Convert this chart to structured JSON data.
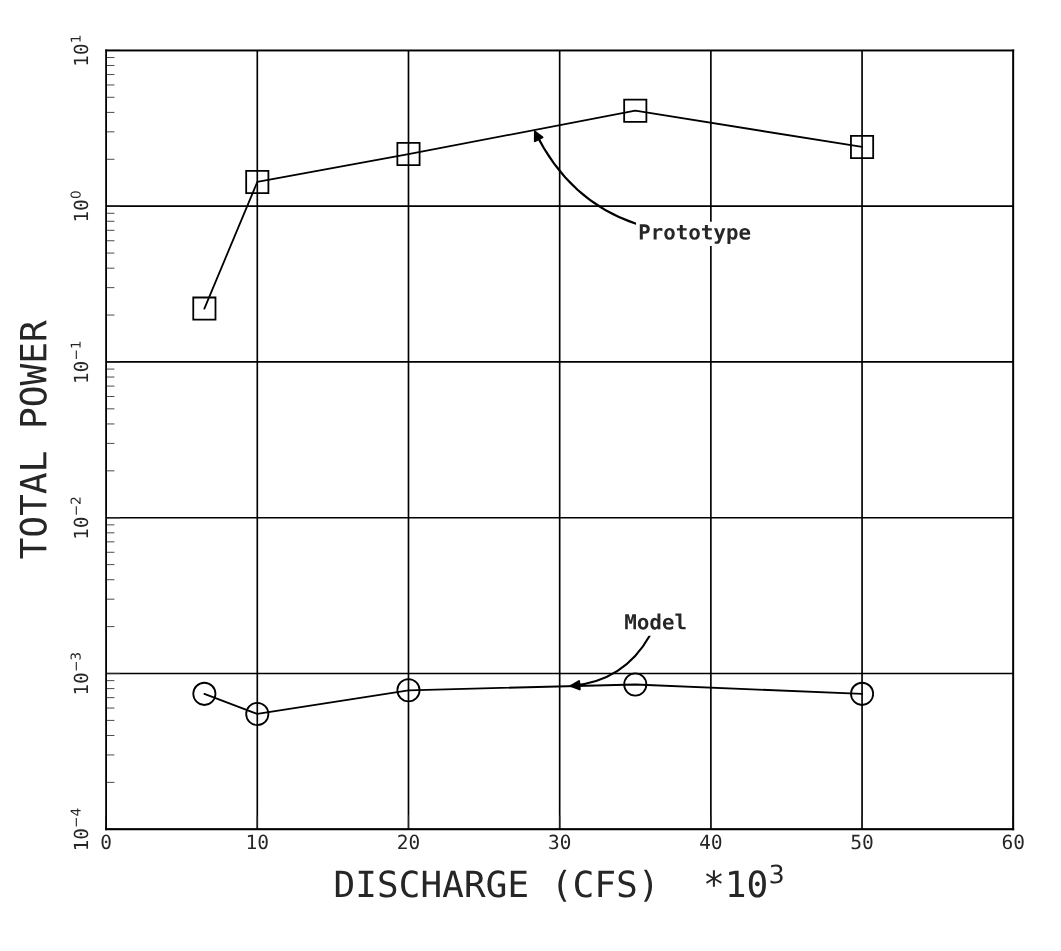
{
  "chart_data": {
    "type": "line",
    "xlabel": "DISCHARGE (CFS)  *10$^{3}$",
    "ylabel": "TOTAL POWER",
    "x": [
      6.5,
      10,
      20,
      35,
      50
    ],
    "series": [
      {
        "color": "#000000",
        "marker": "square",
        "values": [
          0.22,
          1.43,
          2.16,
          4.1,
          2.4
        ]
      },
      {
        "color": "#000000",
        "marker": "circle",
        "values": [
          0.00074,
          0.00055,
          0.00078,
          0.00085,
          0.00074
        ]
      }
    ],
    "annotations": [
      {
        "text": "Prototype",
        "x": 28.3,
        "y": 3.1
      },
      {
        "text": "Model",
        "x": 30.6,
        "y": 0.00083
      }
    ],
    "log": "y",
    "xlim": [
      0,
      60
    ],
    "ylim": [
      0.0001,
      10
    ],
    "xticks": [
      0,
      10,
      20,
      30,
      40,
      50,
      60
    ],
    "yticks": [
      {
        "value": 0.0001,
        "label": "10$^{−4}$"
      },
      {
        "value": 0.001,
        "label": "10$^{−3}$"
      },
      {
        "value": 0.01,
        "label": "10$^{−2}$"
      },
      {
        "value": 0.1,
        "label": "10$^{−1}$"
      },
      {
        "value": 1,
        "label": "10$^{0}$"
      },
      {
        "value": 10,
        "label": "10$^{1}$"
      }
    ],
    "grid": true,
    "line_style": "solid"
  }
}
